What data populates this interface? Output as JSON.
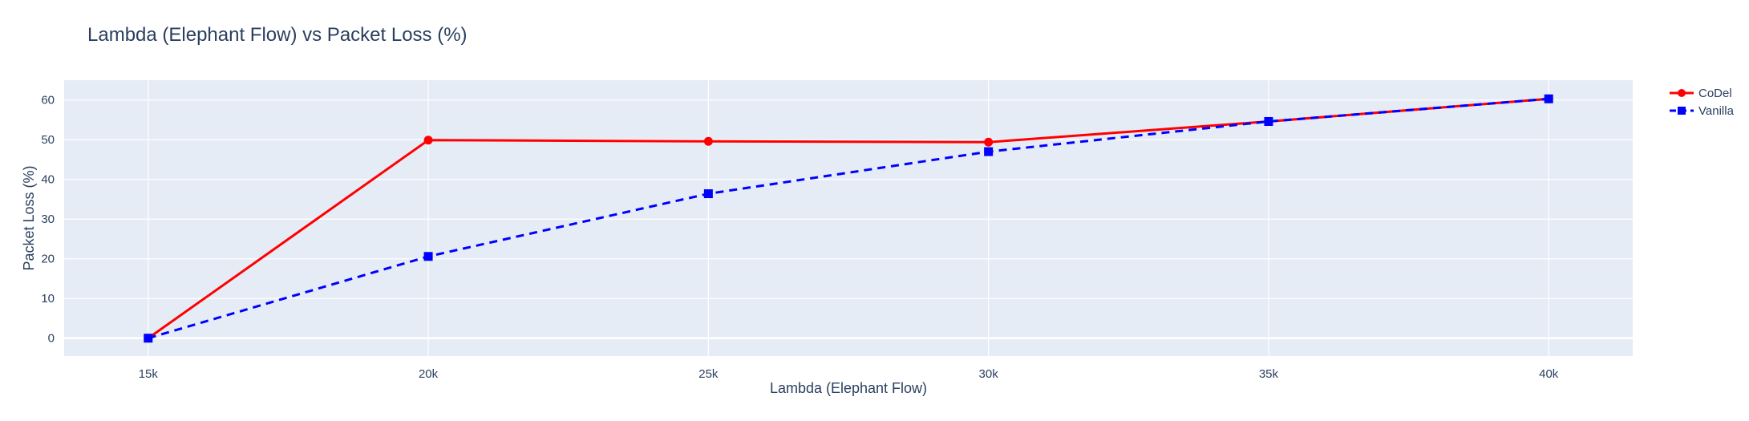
{
  "chart_data": {
    "type": "line",
    "title": "Lambda (Elephant Flow) vs Packet Loss (%)",
    "xlabel": "Lambda (Elephant Flow)",
    "ylabel": "Packet Loss (%)",
    "x": [
      15000,
      20000,
      25000,
      30000,
      35000,
      40000
    ],
    "x_tick_labels": [
      "15k",
      "20k",
      "25k",
      "30k",
      "35k",
      "40k"
    ],
    "y_ticks": [
      0,
      10,
      20,
      30,
      40,
      50,
      60
    ],
    "xlim": [
      13500,
      41500
    ],
    "ylim": [
      -4.5,
      65
    ],
    "grid": true,
    "legend_position": "top-right",
    "series": [
      {
        "name": "CoDel",
        "color": "#ff0000",
        "dash": "solid",
        "marker": "circle",
        "values": [
          0,
          49.9,
          49.6,
          49.4,
          54.6,
          60.3
        ]
      },
      {
        "name": "Vanilla",
        "color": "#0000ff",
        "dash": "dash",
        "marker": "square",
        "values": [
          0,
          20.6,
          36.4,
          47.0,
          54.6,
          60.3
        ]
      }
    ]
  }
}
